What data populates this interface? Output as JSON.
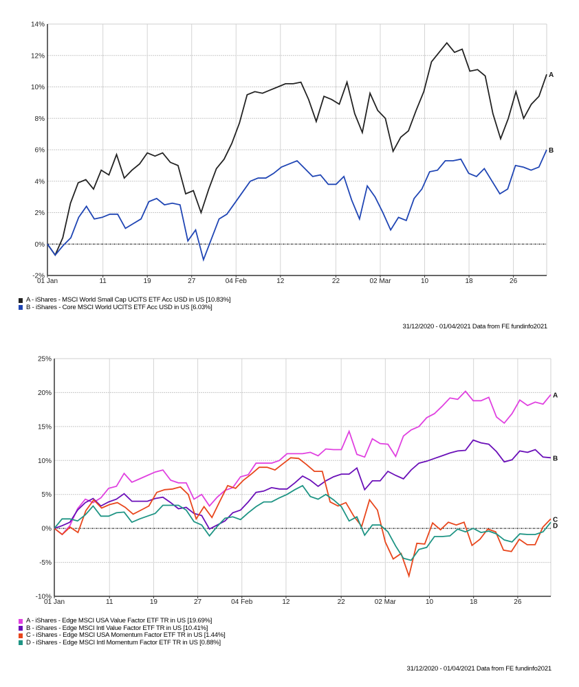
{
  "chart_data": [
    {
      "type": "line",
      "title": "",
      "xlabel": "",
      "ylabel": "",
      "ylim": [
        -2,
        14
      ],
      "yticks": [
        -2,
        0,
        2,
        4,
        6,
        8,
        10,
        12,
        14
      ],
      "ytick_labels": [
        "-2%",
        "0%",
        "2%",
        "4%",
        "6%",
        "8%",
        "10%",
        "12%",
        "14%"
      ],
      "x_range_days": [
        0,
        90
      ],
      "xticks": [
        {
          "day": 0,
          "label": "01 Jan"
        },
        {
          "day": 10,
          "label": "11"
        },
        {
          "day": 18,
          "label": "19"
        },
        {
          "day": 26,
          "label": "27"
        },
        {
          "day": 34,
          "label": "04 Feb"
        },
        {
          "day": 42,
          "label": "12"
        },
        {
          "day": 52,
          "label": "22"
        },
        {
          "day": 60,
          "label": "02 Mar"
        },
        {
          "day": 68,
          "label": "10"
        },
        {
          "day": 76,
          "label": "18"
        },
        {
          "day": 84,
          "label": "26"
        }
      ],
      "grid": true,
      "zero_line": true,
      "legend_position": "bottom-left",
      "series": [
        {
          "name": "A - iShares - MSCI World Small Cap UCITS ETF Acc USD in US [10.83%]",
          "end_label": "A",
          "color": "#222222",
          "values": [
            0,
            -0.7,
            0.4,
            2.6,
            3.9,
            4.1,
            3.5,
            4.7,
            4.4,
            5.7,
            4.2,
            4.7,
            5.1,
            5.8,
            5.6,
            5.8,
            5.2,
            5.0,
            3.2,
            3.4,
            2.0,
            3.5,
            4.8,
            5.4,
            6.4,
            7.7,
            9.5,
            9.7,
            9.6,
            9.8,
            10.0,
            10.2,
            10.2,
            10.3,
            9.2,
            7.8,
            9.4,
            9.2,
            8.9,
            10.3,
            8.3,
            7.1,
            9.6,
            8.5,
            8.0,
            5.9,
            6.8,
            7.2,
            8.5,
            9.7,
            11.6,
            12.2,
            12.8,
            12.2,
            12.4,
            11.0,
            11.1,
            10.7,
            8.3,
            6.7,
            8.0,
            9.7,
            8.0,
            8.9,
            9.4,
            10.8
          ]
        },
        {
          "name": "B - iShares - Core MSCI World UCITS ETF Acc USD in US [6.03%]",
          "end_label": "B",
          "color": "#1f45b4",
          "values": [
            0,
            -0.7,
            -0.1,
            0.4,
            1.7,
            2.4,
            1.6,
            1.7,
            1.9,
            1.9,
            1.0,
            1.3,
            1.6,
            2.7,
            2.9,
            2.5,
            2.6,
            2.5,
            0.2,
            0.9,
            -1.0,
            0.3,
            1.6,
            1.9,
            2.6,
            3.3,
            4.0,
            4.2,
            4.2,
            4.5,
            4.9,
            5.1,
            5.3,
            4.8,
            4.3,
            4.4,
            3.8,
            3.8,
            4.3,
            2.8,
            1.6,
            3.7,
            3.0,
            2.0,
            0.9,
            1.7,
            1.5,
            2.9,
            3.5,
            4.6,
            4.7,
            5.3,
            5.3,
            5.4,
            4.5,
            4.3,
            4.8,
            4.0,
            3.2,
            3.5,
            5.0,
            4.9,
            4.7,
            4.9,
            6.0
          ]
        }
      ],
      "footer": "31/12/2020 - 01/04/2021 Data from FE fundinfo2021"
    },
    {
      "type": "line",
      "title": "",
      "xlabel": "",
      "ylabel": "",
      "ylim": [
        -10,
        25
      ],
      "yticks": [
        -10,
        -5,
        0,
        5,
        10,
        15,
        20,
        25
      ],
      "ytick_labels": [
        "-10%",
        "-5%",
        "0%",
        "5%",
        "10%",
        "15%",
        "20%",
        "25%"
      ],
      "x_range_days": [
        0,
        90
      ],
      "xticks": [
        {
          "day": 0,
          "label": "01 Jan"
        },
        {
          "day": 10,
          "label": "11"
        },
        {
          "day": 18,
          "label": "19"
        },
        {
          "day": 26,
          "label": "27"
        },
        {
          "day": 34,
          "label": "04 Feb"
        },
        {
          "day": 42,
          "label": "12"
        },
        {
          "day": 52,
          "label": "22"
        },
        {
          "day": 60,
          "label": "02 Mar"
        },
        {
          "day": 68,
          "label": "10"
        },
        {
          "day": 76,
          "label": "18"
        },
        {
          "day": 84,
          "label": "26"
        }
      ],
      "grid": true,
      "zero_line": true,
      "legend_position": "bottom-left",
      "series": [
        {
          "name": "A - iShares - Edge MSCI USA Value Factor ETF TR in US [19.69%]",
          "end_label": "A",
          "color": "#e040e0",
          "values": [
            0,
            -0.9,
            0.4,
            2.9,
            4.3,
            3.8,
            4.5,
            5.9,
            6.2,
            8.1,
            6.8,
            7.3,
            7.8,
            8.3,
            8.6,
            7.1,
            6.7,
            6.7,
            4.3,
            5.0,
            3.3,
            4.6,
            5.6,
            6.0,
            7.6,
            7.9,
            9.6,
            9.6,
            9.6,
            10.0,
            11.0,
            11.0,
            11.0,
            11.2,
            10.7,
            11.7,
            11.6,
            11.6,
            14.3,
            10.9,
            10.5,
            13.2,
            12.5,
            12.4,
            10.6,
            13.6,
            14.5,
            15.0,
            16.3,
            16.9,
            18.0,
            19.2,
            19.0,
            20.2,
            18.8,
            18.8,
            19.3,
            16.4,
            15.5,
            16.9,
            18.9,
            18.1,
            18.6,
            18.3,
            19.7
          ]
        },
        {
          "name": "B - iShares - Edge MSCI Intl Value Factor ETF TR in US [10.41%]",
          "end_label": "B",
          "color": "#6a0fb8",
          "values": [
            0,
            0.4,
            0.9,
            2.7,
            3.8,
            4.4,
            3.3,
            3.9,
            4.3,
            5.1,
            4.0,
            4.0,
            4.0,
            4.4,
            4.6,
            3.8,
            2.9,
            3.1,
            2.2,
            1.9,
            -0.1,
            0.5,
            1.1,
            2.3,
            2.7,
            3.9,
            5.3,
            5.5,
            6.0,
            5.8,
            5.8,
            6.7,
            7.7,
            7.1,
            6.2,
            7.0,
            7.6,
            8.0,
            8.0,
            8.9,
            5.7,
            7.0,
            7.0,
            8.4,
            7.8,
            7.3,
            8.6,
            9.6,
            9.9,
            10.3,
            10.7,
            11.1,
            11.4,
            11.5,
            13.0,
            12.6,
            12.4,
            11.3,
            9.8,
            10.1,
            11.4,
            11.2,
            11.6,
            10.5,
            10.4
          ]
        },
        {
          "name": "C - iShares - Edge MSCI USA Momentum Factor ETF TR in US [1.44%]",
          "end_label": "C",
          "color": "#e8461c",
          "values": [
            0,
            -0.9,
            0.2,
            -0.6,
            2.6,
            4.2,
            3.0,
            3.5,
            3.8,
            3.1,
            2.1,
            2.7,
            3.3,
            5.3,
            5.7,
            5.8,
            6.1,
            5.0,
            1.4,
            3.2,
            1.6,
            4.0,
            6.3,
            5.9,
            7.1,
            8.0,
            9.0,
            9.0,
            8.6,
            9.5,
            10.4,
            10.3,
            9.4,
            8.4,
            8.4,
            3.9,
            3.3,
            3.8,
            1.8,
            0.3,
            4.2,
            2.7,
            -2.0,
            -4.5,
            -3.7,
            -7.0,
            -2.2,
            -2.3,
            0.8,
            -0.2,
            0.9,
            0.5,
            0.9,
            -2.5,
            -1.6,
            -0.1,
            -0.5,
            -3.2,
            -3.4,
            -1.6,
            -2.4,
            -2.4,
            0.2,
            1.4
          ]
        },
        {
          "name": "D - iShares - Edge MSCI Intl Momentum Factor ETF TR in US [0.88%]",
          "end_label": "D",
          "color": "#1e9484",
          "values": [
            0,
            1.4,
            1.4,
            1.1,
            2.0,
            3.3,
            1.8,
            1.8,
            2.3,
            2.4,
            0.9,
            1.4,
            1.8,
            2.2,
            3.4,
            3.4,
            3.4,
            2.7,
            1.0,
            0.5,
            -1.1,
            0.3,
            1.5,
            1.7,
            1.3,
            2.3,
            3.2,
            3.9,
            3.9,
            4.5,
            5.0,
            5.7,
            6.3,
            4.7,
            4.3,
            5.0,
            4.2,
            3.2,
            1.1,
            1.7,
            -1.0,
            0.5,
            0.5,
            -0.5,
            -2.6,
            -4.4,
            -4.7,
            -3.1,
            -2.8,
            -1.2,
            -1.2,
            -1.1,
            -0.1,
            -0.5,
            0.0,
            -0.6,
            -0.4,
            -0.8,
            -1.7,
            -2.0,
            -0.8,
            -0.9,
            -0.9,
            -0.5,
            0.9
          ]
        }
      ],
      "footer": "31/12/2020 - 01/04/2021 Data from FE fundinfo2021"
    }
  ]
}
